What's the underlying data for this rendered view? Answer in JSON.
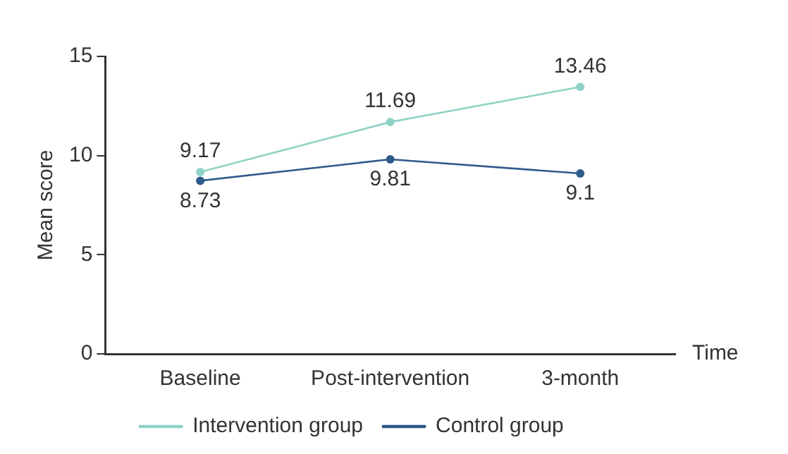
{
  "chart_data": {
    "type": "line",
    "xlabel": "Time",
    "ylabel": "Mean score",
    "categories": [
      "Baseline",
      "Post-intervention",
      "3-month"
    ],
    "series": [
      {
        "name": "Intervention group",
        "color": "#8fd3c6",
        "values": [
          9.17,
          11.69,
          13.46
        ]
      },
      {
        "name": "Control group",
        "color": "#2f5a8c",
        "values": [
          8.73,
          9.81,
          9.1
        ]
      }
    ],
    "ylim": [
      0,
      15
    ],
    "yticks": [
      0,
      5,
      10,
      15
    ],
    "grid": false,
    "legend": "bottom",
    "marker": "circle",
    "line_style": "solid",
    "data_labels": true
  }
}
